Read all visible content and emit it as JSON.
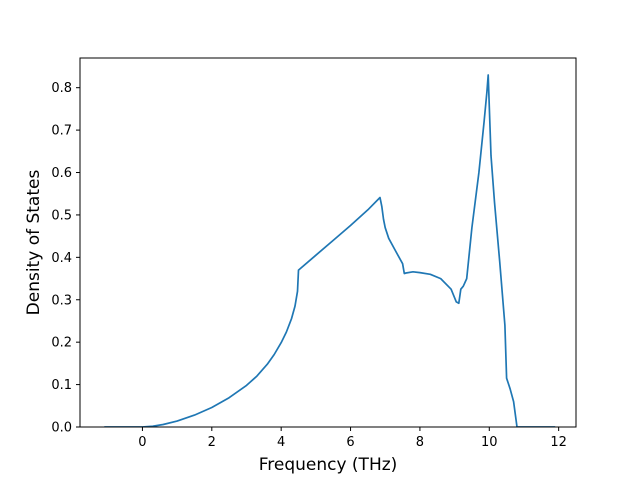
{
  "chart_data": {
    "type": "line",
    "title": "",
    "xlabel": "Frequency (THz)",
    "ylabel": "Density of States",
    "xlim": [
      -1.8,
      12.5
    ],
    "ylim": [
      0.0,
      0.87
    ],
    "xticks": [
      0,
      2,
      4,
      6,
      8,
      10,
      12
    ],
    "yticks": [
      0.0,
      0.1,
      0.2,
      0.3,
      0.4,
      0.5,
      0.6,
      0.7,
      0.8
    ],
    "xtick_labels": [
      "0",
      "2",
      "4",
      "6",
      "8",
      "10",
      "12"
    ],
    "ytick_labels": [
      "0.0",
      "0.1",
      "0.2",
      "0.3",
      "0.4",
      "0.5",
      "0.6",
      "0.7",
      "0.8"
    ],
    "grid": false,
    "line_color": "#1f77b4",
    "series": [
      {
        "x": [
          -1.1,
          -0.5,
          0.0,
          0.3,
          0.6,
          1.0,
          1.5,
          2.0,
          2.5,
          3.0,
          3.3,
          3.6,
          3.8,
          4.0,
          4.15,
          4.3,
          4.4,
          4.47,
          4.5,
          5.0,
          5.5,
          6.0,
          6.5,
          6.85,
          6.9,
          6.95,
          7.0,
          7.1,
          7.3,
          7.5,
          7.55,
          7.6,
          7.8,
          8.0,
          8.3,
          8.6,
          8.9,
          9.05,
          9.12,
          9.18,
          9.25,
          9.35,
          9.5,
          9.7,
          9.85,
          9.93,
          9.97,
          10.05,
          10.15,
          10.3,
          10.45,
          10.5,
          10.6,
          10.7,
          10.8,
          11.0,
          11.5,
          11.9
        ],
        "y": [
          0.0,
          0.0,
          0.0,
          0.002,
          0.006,
          0.014,
          0.028,
          0.046,
          0.069,
          0.098,
          0.12,
          0.148,
          0.171,
          0.199,
          0.224,
          0.256,
          0.285,
          0.32,
          0.37,
          0.405,
          0.44,
          0.475,
          0.512,
          0.541,
          0.52,
          0.49,
          0.47,
          0.445,
          0.415,
          0.385,
          0.362,
          0.363,
          0.366,
          0.364,
          0.36,
          0.35,
          0.325,
          0.295,
          0.292,
          0.325,
          0.332,
          0.35,
          0.47,
          0.6,
          0.72,
          0.79,
          0.83,
          0.64,
          0.53,
          0.39,
          0.24,
          0.115,
          0.09,
          0.06,
          0.0,
          0.0,
          0.0,
          0.0
        ]
      }
    ]
  }
}
